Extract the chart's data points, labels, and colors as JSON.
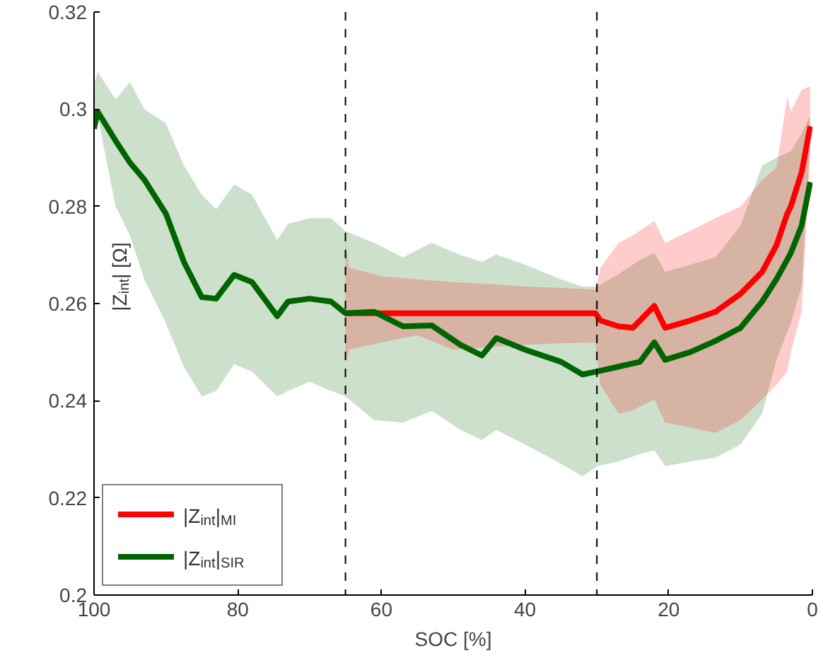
{
  "chart_data": {
    "type": "line",
    "xlabel": "SOC [%]",
    "ylabel": "|Z$_{int}$| [Ω]",
    "xlim": [
      100,
      0
    ],
    "xticks": [
      100,
      80,
      60,
      40,
      20,
      0
    ],
    "ylim": [
      0.2,
      0.32
    ],
    "yticks": [
      0.2,
      0.22,
      0.24,
      0.26,
      0.28,
      0.3,
      0.32
    ],
    "grid": false,
    "legend": "bottom left",
    "marker": "none",
    "line_style": "solid",
    "ref_lines": [
      {
        "axis": "x",
        "value": 65,
        "label": null,
        "color": "#000000",
        "line_style": "dashed"
      },
      {
        "axis": "x",
        "value": 30,
        "label": null,
        "color": "#000000",
        "line_style": "dashed"
      }
    ],
    "series": [
      {
        "name": "|Z$_{int}$|$_{SIR}$",
        "color": "#006400",
        "x": [
          100,
          99.5,
          97,
          95,
          93,
          90,
          87.5,
          85,
          83,
          80.5,
          78,
          74.5,
          73,
          70,
          67,
          65,
          61,
          57,
          53,
          49,
          46,
          44,
          40,
          35,
          32,
          30,
          27,
          24,
          22,
          20.5,
          17,
          13.5,
          10,
          7,
          5,
          3,
          1.5,
          0.3
        ],
        "values": [
          0.296,
          0.2995,
          0.2935,
          0.289,
          0.2855,
          0.2785,
          0.2686,
          0.2613,
          0.261,
          0.2659,
          0.2644,
          0.2574,
          0.2604,
          0.261,
          0.2604,
          0.258,
          0.2583,
          0.2553,
          0.2555,
          0.2515,
          0.2493,
          0.2529,
          0.2505,
          0.248,
          0.2454,
          0.246,
          0.247,
          0.248,
          0.252,
          0.2484,
          0.25,
          0.2523,
          0.255,
          0.2604,
          0.265,
          0.2704,
          0.276,
          0.285
        ],
        "upper": [
          0.305,
          0.3077,
          0.302,
          0.3056,
          0.3,
          0.2971,
          0.2884,
          0.2824,
          0.2794,
          0.2845,
          0.2824,
          0.2731,
          0.2764,
          0.2776,
          0.2776,
          0.2749,
          0.2725,
          0.2695,
          0.2725,
          0.27,
          0.2686,
          0.2701,
          0.268,
          0.265,
          0.2635,
          0.2635,
          0.266,
          0.269,
          0.2704,
          0.2665,
          0.268,
          0.2695,
          0.276,
          0.2884,
          0.29,
          0.2914,
          0.295,
          0.2986
        ],
        "lower": [
          0.295,
          0.2986,
          0.28,
          0.274,
          0.265,
          0.256,
          0.247,
          0.2409,
          0.242,
          0.2475,
          0.246,
          0.2409,
          0.242,
          0.2439,
          0.242,
          0.2409,
          0.236,
          0.2355,
          0.2379,
          0.234,
          0.2319,
          0.234,
          0.231,
          0.227,
          0.2244,
          0.2265,
          0.2275,
          0.229,
          0.2298,
          0.2265,
          0.2275,
          0.2283,
          0.231,
          0.2373,
          0.2484,
          0.256,
          0.2635,
          0.2935
        ]
      },
      {
        "name": "|Z$_{int}$|$_{MI}$",
        "color": "#ff0000",
        "x": [
          65,
          64.5,
          60,
          55,
          50,
          45,
          40,
          35,
          30.2,
          29.5,
          27,
          25,
          22,
          20.5,
          17,
          13.5,
          10,
          7,
          5,
          3.5,
          3,
          1.5,
          0.3
        ],
        "values": [
          0.258,
          0.258,
          0.258,
          0.258,
          0.258,
          0.258,
          0.258,
          0.258,
          0.258,
          0.2565,
          0.2553,
          0.255,
          0.2595,
          0.255,
          0.2565,
          0.2583,
          0.262,
          0.2665,
          0.272,
          0.2785,
          0.28,
          0.287,
          0.2965
        ],
        "upper": [
          0.2725,
          0.2674,
          0.2656,
          0.265,
          0.2644,
          0.264,
          0.2635,
          0.2632,
          0.2629,
          0.2674,
          0.2725,
          0.274,
          0.277,
          0.2725,
          0.275,
          0.2776,
          0.28,
          0.2854,
          0.288,
          0.3026,
          0.2995,
          0.304,
          0.3047
        ],
        "lower": [
          0.2475,
          0.2505,
          0.252,
          0.2535,
          0.2505,
          0.251,
          0.2515,
          0.2518,
          0.252,
          0.2433,
          0.2373,
          0.238,
          0.2403,
          0.2355,
          0.2345,
          0.2334,
          0.236,
          0.2403,
          0.2433,
          0.246,
          0.25,
          0.2583,
          0.2905
        ]
      }
    ]
  }
}
